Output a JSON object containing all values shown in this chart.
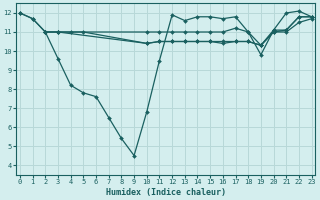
{
  "title": "",
  "xlabel": "Humidex (Indice chaleur)",
  "ylabel": "",
  "background_color": "#d4eeee",
  "grid_color": "#b8d8d8",
  "line_color": "#1a6060",
  "series": [
    {
      "x": [
        0,
        1,
        2,
        3,
        4,
        5,
        6,
        7,
        8,
        9,
        10,
        11,
        12,
        13,
        14,
        15,
        16,
        17,
        18,
        19,
        20,
        21,
        22,
        23
      ],
      "y": [
        12,
        11.7,
        11,
        9.6,
        8.2,
        7.8,
        7.6,
        6.5,
        5.4,
        4.5,
        6.8,
        9.5,
        11.9,
        11.6,
        11.8,
        11.8,
        11.7,
        11.8,
        11.0,
        9.8,
        11.1,
        12.0,
        12.1,
        11.8
      ]
    },
    {
      "x": [
        0,
        1,
        2,
        3,
        4,
        5,
        10,
        11,
        12,
        13,
        14,
        15,
        16,
        17,
        18,
        19,
        20,
        21,
        22,
        23
      ],
      "y": [
        12,
        11.7,
        11,
        11,
        11,
        11,
        10.4,
        10.5,
        10.5,
        10.5,
        10.5,
        10.5,
        10.5,
        10.5,
        10.5,
        10.3,
        11.0,
        11.1,
        11.8,
        11.8
      ]
    },
    {
      "x": [
        2,
        3,
        10,
        11,
        12,
        13,
        14,
        15,
        16,
        17,
        18,
        19,
        20,
        21,
        22,
        23
      ],
      "y": [
        11,
        11,
        11.0,
        11.0,
        11.0,
        11.0,
        11.0,
        11.0,
        11.0,
        11.2,
        11.0,
        10.3,
        11.1,
        11.1,
        11.8,
        11.8
      ]
    },
    {
      "x": [
        2,
        3,
        10,
        11,
        12,
        13,
        14,
        15,
        16,
        17,
        18,
        19,
        20,
        21,
        22,
        23
      ],
      "y": [
        11,
        11,
        10.4,
        10.5,
        10.5,
        10.5,
        10.5,
        10.5,
        10.4,
        10.5,
        10.5,
        10.3,
        11.0,
        11.0,
        11.5,
        11.7
      ]
    }
  ],
  "xlim": [
    -0.3,
    23.3
  ],
  "ylim": [
    3.5,
    12.5
  ],
  "yticks": [
    4,
    5,
    6,
    7,
    8,
    9,
    10,
    11,
    12
  ],
  "xticks": [
    0,
    1,
    2,
    3,
    4,
    5,
    6,
    7,
    8,
    9,
    10,
    11,
    12,
    13,
    14,
    15,
    16,
    17,
    18,
    19,
    20,
    21,
    22,
    23
  ],
  "figsize": [
    3.2,
    2.0
  ],
  "dpi": 100
}
